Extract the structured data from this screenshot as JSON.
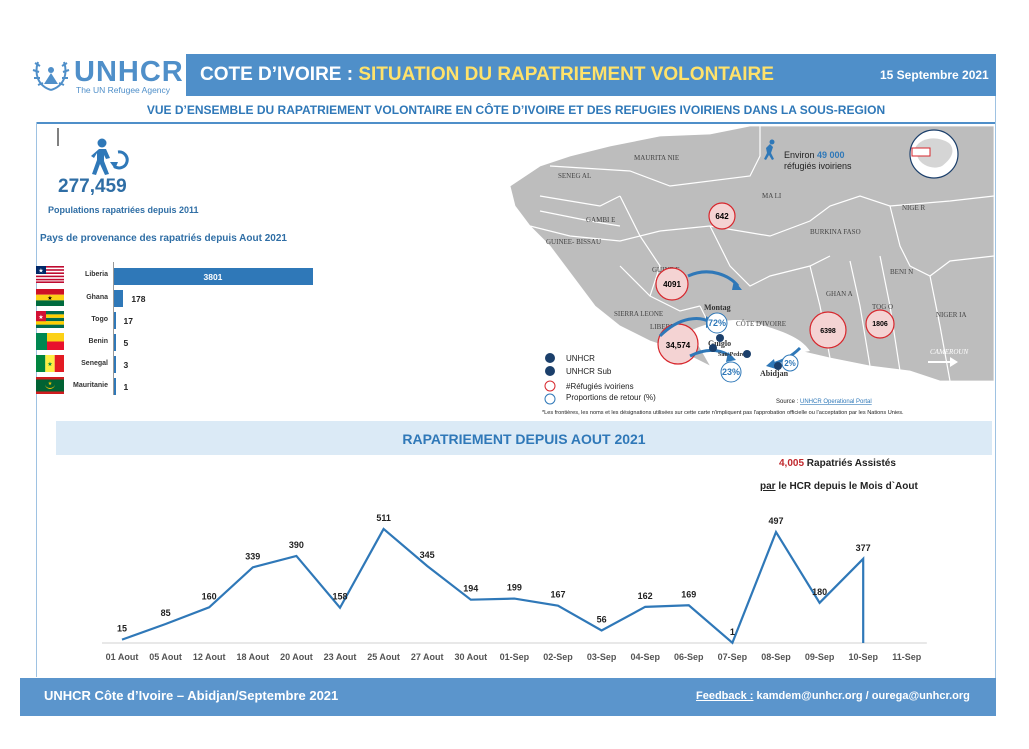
{
  "header": {
    "logo_text": "UNHCR",
    "logo_subtext": "The UN Refugee Agency",
    "title_country": "COTE D’IVOIRE : ",
    "title_topic": "SITUATION DU RAPATRIEMENT  VOLONTAIRE",
    "date": "15 Septembre 2021",
    "subtitle": "VUE D’ENSEMBLE DU RAPATRIEMENT VOLONTAIRE EN CÔTE D’IVOIRE ET DES REFUGIES IVOIRIENS DANS LA SOUS-REGION"
  },
  "stats": {
    "total_repatriated": "277,459",
    "total_label": "Populations  rapatriées depuis 2011"
  },
  "origin_chart": {
    "title": "Pays de provenance des rapatriés depuis Aout 2021",
    "max": 3801,
    "rows": [
      {
        "country": "Liberia",
        "value": 3801,
        "label": "3801"
      },
      {
        "country": "Ghana",
        "value": 178,
        "label": "178"
      },
      {
        "country": "Togo",
        "value": 17,
        "label": "17"
      },
      {
        "country": "Benin",
        "value": 5,
        "label": "5"
      },
      {
        "country": "Senegal",
        "value": 3,
        "label": "3"
      },
      {
        "country": "Mauritanie",
        "value": 1,
        "label": "1"
      }
    ]
  },
  "map": {
    "refugees_prefix": "Environ ",
    "refugees_count": "49 000",
    "refugees_suffix": "réfugiés ivoiriens",
    "countries": [
      "MAURITA NIE",
      "SENEG AL",
      "GAMBI E",
      "GUINEE- BISSAU",
      "MA LI",
      "NIGE R",
      "BURKINA FASO",
      "GUINE E",
      "SIERRA LEONE",
      "LIBERI A",
      "CÔTE D'IVOIRE",
      "GHAN A",
      "TOG O",
      "BENI N",
      "NIGER IA",
      "CAMEROUN"
    ],
    "bubbles": [
      {
        "label": "642"
      },
      {
        "label": "4091"
      },
      {
        "label": "34,574"
      },
      {
        "label": "6398"
      },
      {
        "label": "1806"
      }
    ],
    "percentages": [
      "72%",
      "23%",
      "2%"
    ],
    "places": [
      "Montag",
      "Guiglo",
      "San-Pedro",
      "Abidjan"
    ],
    "legend": [
      "UNHCR",
      "UNHCR Sub",
      "#Réfugiés ivoiriens",
      "Proportions de retour (%)"
    ],
    "source_prefix": "Source : ",
    "source_link": "UNHCR Operational Portal",
    "disclaimer": "*Les frontières, les noms et les désignations utilisées sur cette carte n'impliquent pas l'approbation officielle ou l'acceptation par les Nations Unies."
  },
  "chart_data": {
    "type": "line",
    "title": "RAPATRIEMENT DEPUIS AOUT 2021",
    "categories": [
      "01 Aout",
      "05 Aout",
      "12 Aout",
      "18 Aout",
      "20 Aout",
      "23 Aout",
      "25 Aout",
      "27 Aout",
      "30 Aout",
      "01-Sep",
      "02-Sep",
      "03-Sep",
      "04-Sep",
      "06-Sep",
      "07-Sep",
      "08-Sep",
      "09-Sep",
      "10-Sep",
      "11-Sep"
    ],
    "series": [
      {
        "name": "Rapatriés",
        "values": [
          15,
          85,
          160,
          339,
          390,
          158,
          511,
          345,
          194,
          199,
          167,
          56,
          162,
          169,
          1,
          497,
          180,
          377,
          0
        ]
      }
    ],
    "point_labels": [
      "15",
      "85",
      "160",
      "339",
      "390",
      "158",
      "511",
      "345",
      "194",
      "199",
      "167",
      "56",
      "162",
      "169",
      "1",
      "497",
      "180",
      "377",
      ""
    ],
    "color": "#2f78b8",
    "xlabel": "",
    "ylabel": "",
    "ylim": [
      0,
      560
    ],
    "grid": false
  },
  "assisted": {
    "count": "4,005",
    "line1": " Rapatriés Assistés",
    "par": "par",
    "line2": " le HCR depuis le Mois d`Aout"
  },
  "footer": {
    "left": "UNHCR Côte d’Ivoire – Abidjan/Septembre 2021",
    "feedback_label": "Feedback :",
    "feedback_emails": " kamdem@unhcr.org / ourega@unhcr.org"
  }
}
